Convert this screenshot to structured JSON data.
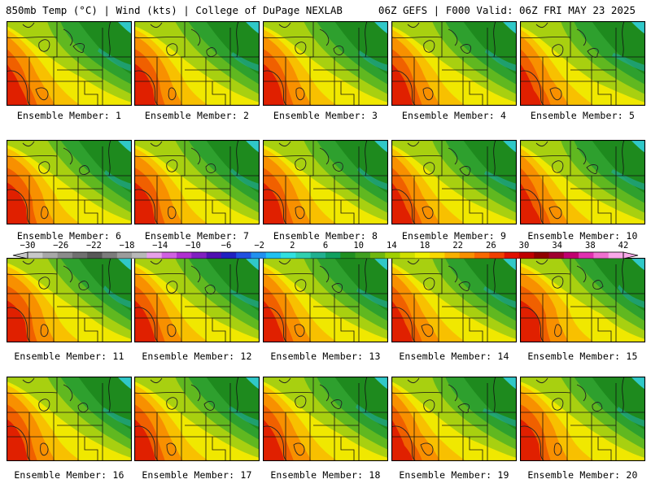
{
  "header": {
    "left": "850mb Temp (°C) | Wind (kts) | College of DuPage NEXLAB",
    "right": "06Z GEFS | F000 Valid: 06Z FRI MAY 23 2025"
  },
  "panel_label_prefix": "Ensemble Member: ",
  "members": [
    {
      "label": "Ensemble Member: 1"
    },
    {
      "label": "Ensemble Member: 2"
    },
    {
      "label": "Ensemble Member: 3"
    },
    {
      "label": "Ensemble Member: 4"
    },
    {
      "label": "Ensemble Member: 5"
    },
    {
      "label": "Ensemble Member: 6"
    },
    {
      "label": "Ensemble Member: 7"
    },
    {
      "label": "Ensemble Member: 8"
    },
    {
      "label": "Ensemble Member: 9"
    },
    {
      "label": "Ensemble Member: 10"
    },
    {
      "label": "Ensemble Member: 11"
    },
    {
      "label": "Ensemble Member: 12"
    },
    {
      "label": "Ensemble Member: 13"
    },
    {
      "label": "Ensemble Member: 14"
    },
    {
      "label": "Ensemble Member: 15"
    },
    {
      "label": "Ensemble Member: 16"
    },
    {
      "label": "Ensemble Member: 17"
    },
    {
      "label": "Ensemble Member: 18"
    },
    {
      "label": "Ensemble Member: 19"
    },
    {
      "label": "Ensemble Member: 20"
    }
  ],
  "colorbar": {
    "ticks": [
      "−30",
      "−26",
      "−22",
      "−18",
      "−14",
      "−10",
      "−6",
      "−2",
      "2",
      "6",
      "10",
      "14",
      "18",
      "22",
      "26",
      "30",
      "34",
      "38",
      "42"
    ],
    "colors": [
      "#c8c8c8",
      "#a8a8a8",
      "#8c8c8c",
      "#707070",
      "#585858",
      "#7c7c7c",
      "#9c9c9c",
      "#b8b8b8",
      "#e8a0e8",
      "#d060e0",
      "#b030d0",
      "#8020c0",
      "#5010b0",
      "#2020c0",
      "#2050e0",
      "#2090f0",
      "#20c0f0",
      "#30e0e0",
      "#30d0b0",
      "#20b090",
      "#10a060",
      "#209020",
      "#40a020",
      "#70b810",
      "#a0d000",
      "#d0e000",
      "#f0f000",
      "#f8d800",
      "#f8b000",
      "#f89000",
      "#f86800",
      "#f04000",
      "#e01000",
      "#c00000",
      "#900000",
      "#a00030",
      "#c00070",
      "#e030b0",
      "#f070d0",
      "#f8a8e8"
    ]
  },
  "palette": {
    "deep_green": "#1e8a1e",
    "green": "#2ea02e",
    "light_green": "#60b820",
    "yellowgreen": "#a8d010",
    "yellow": "#f0e800",
    "orange_yellow": "#f8c000",
    "orange": "#f89000",
    "dark_orange": "#f06000",
    "red": "#e02000",
    "cyan": "#30c8c8",
    "teal": "#20a890"
  }
}
